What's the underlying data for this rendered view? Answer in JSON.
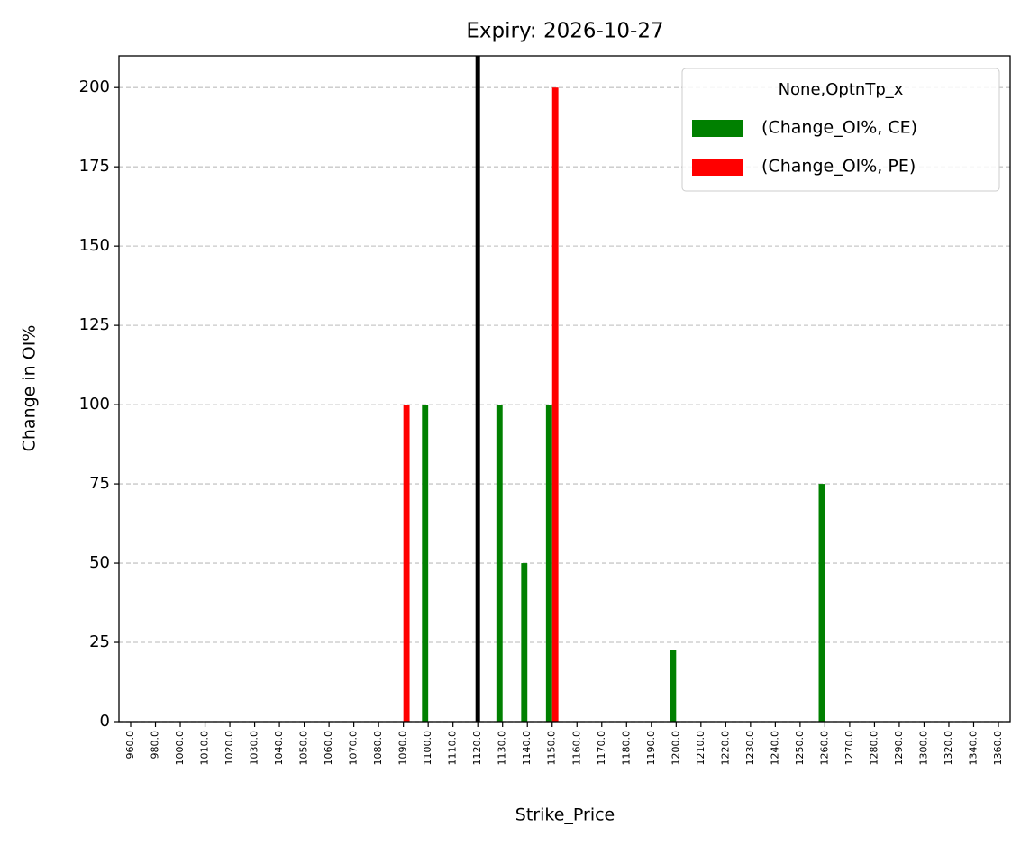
{
  "chart_data": {
    "type": "bar",
    "title": "Expiry: 2026-10-27",
    "x_label": "Strike_Price",
    "y_label": "Change in OI%",
    "categories": [
      "960.0",
      "980.0",
      "1000.0",
      "1010.0",
      "1020.0",
      "1030.0",
      "1040.0",
      "1050.0",
      "1060.0",
      "1070.0",
      "1080.0",
      "1090.0",
      "1100.0",
      "1110.0",
      "1120.0",
      "1130.0",
      "1140.0",
      "1150.0",
      "1160.0",
      "1170.0",
      "1180.0",
      "1190.0",
      "1200.0",
      "1210.0",
      "1220.0",
      "1230.0",
      "1240.0",
      "1250.0",
      "1260.0",
      "1270.0",
      "1280.0",
      "1290.0",
      "1300.0",
      "1320.0",
      "1340.0",
      "1360.0"
    ],
    "series": [
      {
        "name": " (Change_OI%, CE)",
        "color": "#008000",
        "values": [
          0,
          0,
          0,
          0,
          0,
          0,
          0,
          0,
          0,
          0,
          0,
          0,
          100,
          0,
          0,
          100,
          50,
          100,
          0,
          0,
          0,
          0,
          22.5,
          0,
          0,
          0,
          0,
          0,
          75,
          0,
          0,
          0,
          0,
          0,
          0,
          0
        ]
      },
      {
        "name": " (Change_OI%, PE)",
        "color": "#ff0000",
        "values": [
          0,
          0,
          0,
          0,
          0,
          0,
          0,
          0,
          0,
          0,
          0,
          100,
          0,
          0,
          0,
          0,
          0,
          200,
          0,
          0,
          0,
          0,
          0,
          0,
          0,
          0,
          0,
          0,
          0,
          0,
          0,
          0,
          0,
          0,
          0,
          0
        ]
      }
    ],
    "legend_title": "None,OptnTp_x",
    "legend": "upper right",
    "reference_line": {
      "category": "1120.0",
      "color": "#000000"
    },
    "ylim": [
      0,
      210
    ],
    "yticks": [
      0,
      25,
      50,
      75,
      100,
      125,
      150,
      175,
      200
    ],
    "grid": true
  }
}
